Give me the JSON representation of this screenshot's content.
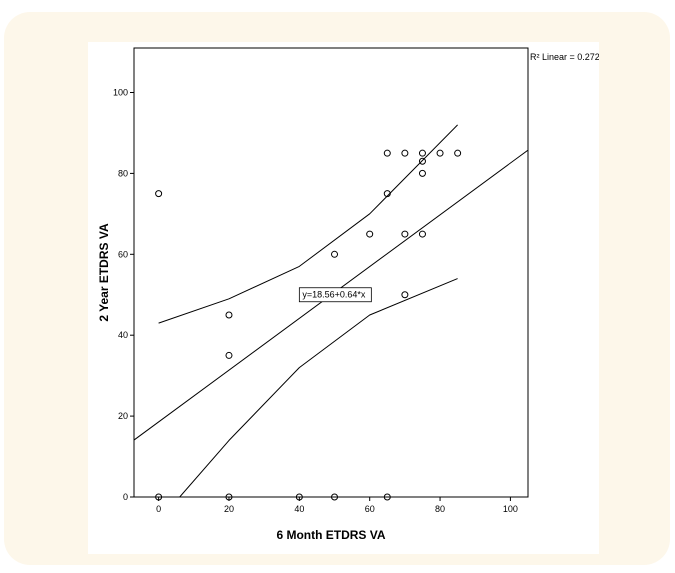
{
  "chart_data": {
    "type": "scatter",
    "xlabel": "6 Month ETDRS VA",
    "ylabel": "2 Year ETDRS VA",
    "xlim": [
      -7,
      105
    ],
    "ylim": [
      0,
      111
    ],
    "x_ticks": [
      0,
      20,
      40,
      60,
      80,
      100
    ],
    "y_ticks": [
      0,
      20,
      40,
      60,
      80,
      100
    ],
    "grid": false,
    "r2_label": "R² Linear = 0.272",
    "equation_label": "y=18.56+0.64*x",
    "points": [
      {
        "x": 0,
        "y": 75
      },
      {
        "x": 0,
        "y": 0
      },
      {
        "x": 20,
        "y": 45
      },
      {
        "x": 20,
        "y": 35
      },
      {
        "x": 20,
        "y": 0
      },
      {
        "x": 40,
        "y": 0
      },
      {
        "x": 50,
        "y": 60
      },
      {
        "x": 50,
        "y": 0
      },
      {
        "x": 60,
        "y": 65
      },
      {
        "x": 65,
        "y": 85
      },
      {
        "x": 65,
        "y": 75
      },
      {
        "x": 65,
        "y": 0
      },
      {
        "x": 70,
        "y": 85
      },
      {
        "x": 70,
        "y": 65
      },
      {
        "x": 70,
        "y": 50
      },
      {
        "x": 75,
        "y": 85
      },
      {
        "x": 75,
        "y": 83
      },
      {
        "x": 75,
        "y": 80
      },
      {
        "x": 75,
        "y": 65
      },
      {
        "x": 80,
        "y": 85
      },
      {
        "x": 85,
        "y": 85
      }
    ],
    "fit_line": {
      "intercept": 18.56,
      "slope": 0.64
    },
    "upper_band": [
      [
        0,
        43
      ],
      [
        20,
        49
      ],
      [
        40,
        57
      ],
      [
        60,
        70
      ],
      [
        85,
        92
      ]
    ],
    "lower_band": [
      [
        6,
        0
      ],
      [
        20,
        14
      ],
      [
        40,
        32
      ],
      [
        60,
        45
      ],
      [
        85,
        54
      ]
    ]
  }
}
